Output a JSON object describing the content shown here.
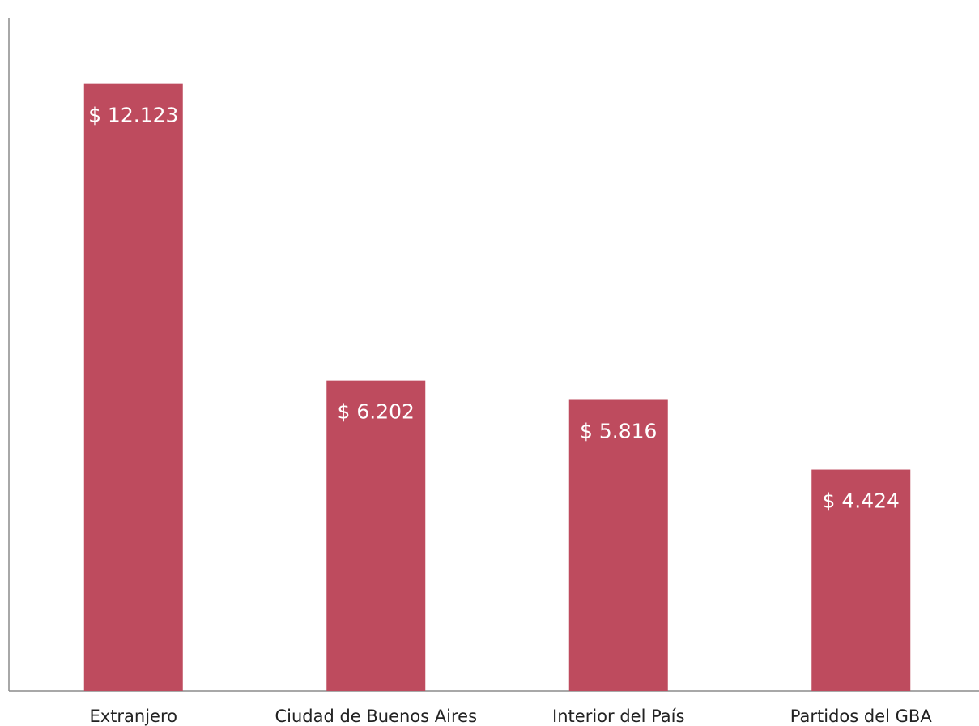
{
  "chart_data": {
    "type": "bar",
    "title": "",
    "xlabel": "",
    "ylabel": "",
    "categories": [
      "Extranjero",
      "Ciudad de Buenos Aires",
      "Interior del País",
      "Partidos del GBA"
    ],
    "values": [
      12123,
      6202,
      5816,
      4424
    ],
    "data_labels": [
      "$ 12.123",
      "$ 6.202",
      "$ 5.816",
      "$ 4.424"
    ],
    "ylim": [
      0,
      13800
    ],
    "y_axis_visible_ticks": false,
    "grid": false,
    "legend": "none",
    "bar_color": "#be4b5e",
    "axis_color": "#8c8c8c",
    "label_color": "#ffffff",
    "category_text_color": "#222222"
  }
}
